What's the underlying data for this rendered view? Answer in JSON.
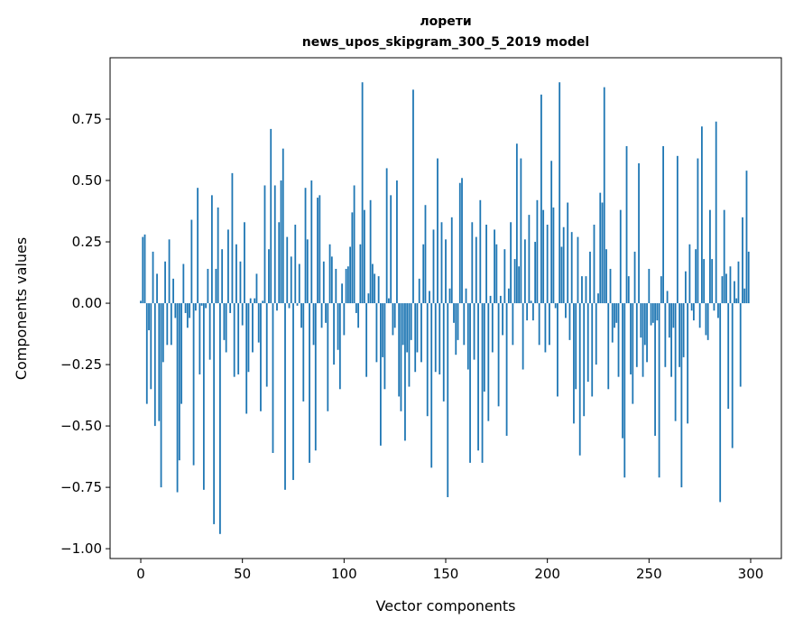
{
  "chart_data": {
    "type": "bar",
    "title": "лорети",
    "subtitle": "news_upos_skipgram_300_5_2019 model",
    "xlabel": "Vector components",
    "ylabel": "Components values",
    "xlim": [
      -15.1,
      315.1
    ],
    "ylim": [
      -1.04,
      1.0
    ],
    "xticks": [
      0,
      50,
      100,
      150,
      200,
      250,
      300
    ],
    "xtick_labels": [
      "0",
      "50",
      "100",
      "150",
      "200",
      "250",
      "300"
    ],
    "yticks": [
      -1.0,
      -0.75,
      -0.5,
      -0.25,
      0.0,
      0.25,
      0.5,
      0.75
    ],
    "ytick_labels": [
      "−1.00",
      "−0.75",
      "−0.50",
      "−0.25",
      "0.00",
      "0.25",
      "0.50",
      "0.75"
    ],
    "grid": false,
    "color": "#1f77b4",
    "values": [
      0.01,
      0.27,
      0.28,
      -0.41,
      -0.11,
      -0.35,
      0.21,
      -0.5,
      0.12,
      -0.48,
      -0.75,
      -0.24,
      0.17,
      -0.17,
      0.26,
      -0.17,
      0.1,
      -0.06,
      -0.77,
      -0.64,
      -0.41,
      0.16,
      -0.04,
      -0.1,
      -0.06,
      0.34,
      -0.66,
      -0.03,
      0.47,
      -0.29,
      -0.01,
      -0.76,
      -0.02,
      0.14,
      -0.23,
      0.44,
      -0.9,
      0.14,
      0.39,
      -0.94,
      0.22,
      -0.15,
      -0.2,
      0.3,
      -0.04,
      0.53,
      -0.3,
      0.24,
      -0.29,
      0.17,
      -0.09,
      0.33,
      -0.45,
      -0.28,
      0.02,
      -0.2,
      0.02,
      0.12,
      -0.16,
      -0.44,
      0.01,
      0.48,
      -0.34,
      0.22,
      0.71,
      -0.61,
      0.48,
      -0.03,
      0.33,
      0.5,
      0.63,
      -0.76,
      0.27,
      -0.02,
      0.19,
      -0.72,
      0.32,
      -0.01,
      0.16,
      -0.1,
      -0.4,
      0.47,
      0.26,
      -0.65,
      0.5,
      -0.17,
      -0.6,
      0.43,
      0.44,
      -0.1,
      0.17,
      -0.08,
      -0.44,
      0.24,
      0.19,
      -0.25,
      0.14,
      -0.19,
      -0.35,
      0.08,
      -0.13,
      0.14,
      0.15,
      0.23,
      0.37,
      0.48,
      -0.04,
      -0.1,
      0.24,
      0.9,
      0.38,
      -0.3,
      0.04,
      0.42,
      0.16,
      0.12,
      -0.24,
      0.11,
      -0.58,
      -0.22,
      -0.35,
      0.55,
      0.02,
      0.44,
      -0.13,
      -0.1,
      0.5,
      -0.38,
      -0.44,
      -0.17,
      -0.56,
      -0.2,
      -0.34,
      -0.15,
      0.87,
      -0.28,
      -0.2,
      0.1,
      -0.24,
      0.24,
      0.4,
      -0.46,
      0.05,
      -0.67,
      0.3,
      -0.28,
      0.59,
      -0.29,
      0.33,
      -0.4,
      0.26,
      -0.79,
      0.06,
      0.35,
      -0.08,
      -0.21,
      -0.15,
      0.49,
      0.51,
      -0.17,
      0.06,
      -0.27,
      -0.65,
      0.33,
      -0.23,
      0.27,
      -0.6,
      0.42,
      -0.65,
      -0.36,
      0.32,
      -0.48,
      0.03,
      -0.2,
      0.3,
      0.24,
      -0.42,
      0.03,
      -0.13,
      0.22,
      -0.54,
      0.06,
      0.33,
      -0.17,
      0.18,
      0.65,
      0.15,
      0.59,
      -0.27,
      0.26,
      -0.07,
      0.36,
      0.01,
      -0.07,
      0.25,
      0.42,
      -0.17,
      0.85,
      0.38,
      -0.2,
      0.32,
      -0.17,
      0.58,
      0.39,
      -0.02,
      -0.38,
      0.9,
      0.23,
      0.31,
      -0.06,
      0.41,
      -0.15,
      0.29,
      -0.49,
      -0.35,
      0.27,
      -0.62,
      0.11,
      -0.46,
      0.11,
      -0.32,
      0.21,
      -0.38,
      0.32,
      -0.25,
      0.04,
      0.45,
      0.41,
      0.88,
      0.22,
      -0.35,
      0.14,
      -0.16,
      -0.1,
      -0.08,
      -0.3,
      0.38,
      -0.55,
      -0.71,
      0.64,
      0.11,
      -0.29,
      -0.41,
      0.21,
      -0.26,
      0.57,
      -0.14,
      -0.3,
      -0.17,
      -0.24,
      0.14,
      -0.09,
      -0.08,
      -0.54,
      -0.07,
      -0.71,
      0.11,
      0.64,
      -0.26,
      0.05,
      -0.14,
      -0.3,
      -0.1,
      -0.48,
      0.6,
      -0.26,
      -0.75,
      -0.22,
      0.13,
      -0.49,
      0.24,
      -0.03,
      -0.07,
      0.22,
      0.59,
      -0.1,
      0.72,
      0.18,
      -0.13,
      -0.15,
      0.38,
      0.18,
      -0.03,
      0.74,
      -0.06,
      -0.81,
      0.11,
      0.38,
      0.12,
      -0.43,
      0.15,
      -0.59,
      0.09,
      0.02,
      0.17,
      -0.34,
      0.35,
      0.06,
      0.54,
      0.21
    ]
  }
}
